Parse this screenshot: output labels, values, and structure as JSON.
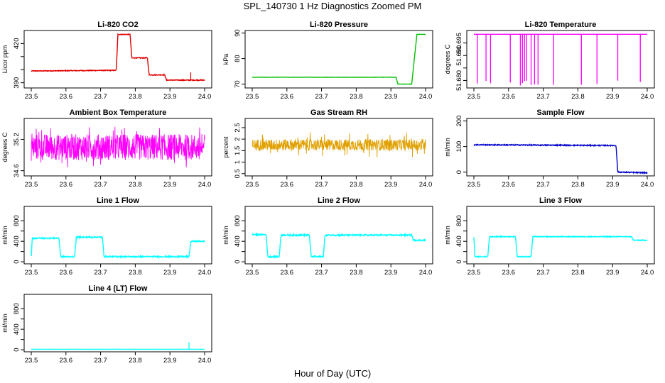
{
  "title": "SPL_140730  1 Hz Diagnostics Zoomed PM",
  "xlabel": "Hour of Day (UTC)",
  "x_ticks": [
    23.5,
    23.6,
    23.7,
    23.8,
    23.9,
    24.0
  ],
  "x_tick_labels": [
    "23.5",
    "23.6",
    "23.7",
    "23.8",
    "23.9",
    "24.0"
  ],
  "chart_data": [
    {
      "type": "line",
      "title": "Li-820 CO2",
      "ylabel": "Licor ppm",
      "color": "#e00000",
      "xlim": [
        23.5,
        24.0
      ],
      "ylim": [
        386,
        430
      ],
      "y_ticks": [
        390,
        400,
        410,
        420
      ],
      "y_tick_labels": [
        "390",
        "",
        "",
        "420"
      ],
      "segments": [
        [
          23.5,
          399
        ],
        [
          23.745,
          399.5
        ],
        [
          23.75,
          427
        ],
        [
          23.785,
          427
        ],
        [
          23.79,
          409
        ],
        [
          23.835,
          409
        ],
        [
          23.84,
          396
        ],
        [
          23.885,
          396
        ],
        [
          23.89,
          392
        ],
        [
          24.0,
          392
        ]
      ],
      "spikes": [
        [
          23.96,
          398
        ]
      ],
      "noise": 0.3
    },
    {
      "type": "line",
      "title": "Li-820 Pressure",
      "ylabel": "kPa",
      "color": "#00c000",
      "xlim": [
        23.5,
        24.0
      ],
      "ylim": [
        68.5,
        91
      ],
      "y_ticks": [
        70,
        80,
        90
      ],
      "y_tick_labels": [
        "70",
        "80",
        "90"
      ],
      "segments": [
        [
          23.5,
          72.7
        ],
        [
          23.915,
          72.7
        ],
        [
          23.92,
          70
        ],
        [
          23.96,
          70
        ],
        [
          23.97,
          83
        ],
        [
          23.975,
          89.5
        ],
        [
          24.0,
          89.5
        ]
      ],
      "noise": 0.05
    },
    {
      "type": "line",
      "title": "Li-820 Temperature",
      "ylabel": "degrees C",
      "color": "#ff00ff",
      "xlim": [
        23.5,
        24.0
      ],
      "ylim": [
        51.677,
        51.7
      ],
      "y_ticks": [
        51.68,
        51.685,
        51.69,
        51.695
      ],
      "y_tick_labels": [
        "51.680",
        "",
        "51.690",
        "51.695"
      ],
      "segments": [
        [
          23.5,
          51.6985
        ],
        [
          24.0,
          51.6985
        ]
      ],
      "dips": [
        23.51,
        23.535,
        23.548,
        23.605,
        23.634,
        23.64,
        23.646,
        23.652,
        23.665,
        23.675,
        23.685,
        23.73,
        23.81,
        23.855,
        23.915,
        23.98
      ],
      "dip_to": 51.678,
      "noise": 0.0
    },
    {
      "type": "noise",
      "title": "Ambient Box Temperature",
      "ylabel": "degrees C",
      "color": "#ff00ff",
      "xlim": [
        23.5,
        24.0
      ],
      "ylim": [
        34.5,
        35.6
      ],
      "y_ticks": [
        34.6,
        35.2
      ],
      "y_tick_labels": [
        "34.6",
        "35.2"
      ],
      "mean": 35.05,
      "band": 0.25,
      "outlier": 0.4
    },
    {
      "type": "noise",
      "title": "Gas Stream RH",
      "ylabel": "percent",
      "color": "#e0a000",
      "xlim": [
        23.5,
        24.0
      ],
      "ylim": [
        0.4,
        2.9
      ],
      "y_ticks": [
        0.5,
        1.0,
        1.5,
        2.0,
        2.5
      ],
      "y_tick_labels": [
        "0.5",
        "1",
        "1.5",
        "2",
        "2.5"
      ],
      "mean": 1.75,
      "band": 0.25,
      "outlier": 0.55
    },
    {
      "type": "line",
      "title": "Sample Flow",
      "ylabel": "ml/min",
      "color": "#0000cc",
      "xlim": [
        23.5,
        24.0
      ],
      "ylim": [
        -15,
        210
      ],
      "y_ticks": [
        0,
        100,
        200
      ],
      "y_tick_labels": [
        "0",
        "100",
        "200"
      ],
      "segments": [
        [
          23.5,
          107
        ],
        [
          23.91,
          104
        ],
        [
          23.915,
          0
        ],
        [
          24.0,
          -3
        ]
      ],
      "noise": 2.0
    },
    {
      "type": "line",
      "title": "Line 1 Flow",
      "ylabel": "ml/min",
      "color": "#00ffff",
      "xlim": [
        23.5,
        24.0
      ],
      "ylim": [
        -40,
        1080
      ],
      "y_ticks": [
        0,
        200,
        400,
        600,
        800
      ],
      "y_tick_labels": [
        "0",
        "",
        "400",
        "",
        "800"
      ],
      "segments": [
        [
          23.5,
          100
        ],
        [
          23.503,
          460
        ],
        [
          23.58,
          460
        ],
        [
          23.585,
          100
        ],
        [
          23.625,
          100
        ],
        [
          23.63,
          480
        ],
        [
          23.705,
          480
        ],
        [
          23.71,
          100
        ],
        [
          23.955,
          100
        ],
        [
          23.96,
          400
        ],
        [
          24.0,
          400
        ]
      ],
      "noise": 12
    },
    {
      "type": "line",
      "title": "Line 2 Flow",
      "ylabel": "ml/min",
      "color": "#00ffff",
      "xlim": [
        23.5,
        24.0
      ],
      "ylim": [
        -40,
        1080
      ],
      "y_ticks": [
        0,
        200,
        400,
        600,
        800
      ],
      "y_tick_labels": [
        "0",
        "",
        "400",
        "",
        "800"
      ],
      "segments": [
        [
          23.5,
          530
        ],
        [
          23.54,
          530
        ],
        [
          23.545,
          100
        ],
        [
          23.578,
          100
        ],
        [
          23.583,
          520
        ],
        [
          23.665,
          520
        ],
        [
          23.67,
          100
        ],
        [
          23.705,
          100
        ],
        [
          23.71,
          520
        ],
        [
          23.96,
          520
        ],
        [
          23.965,
          420
        ],
        [
          24.0,
          420
        ]
      ],
      "noise": 14
    },
    {
      "type": "line",
      "title": "Line 3 Flow",
      "ylabel": "ml/min",
      "color": "#00ffff",
      "xlim": [
        23.5,
        24.0
      ],
      "ylim": [
        -40,
        1080
      ],
      "y_ticks": [
        0,
        200,
        400,
        600,
        800
      ],
      "y_tick_labels": [
        "0",
        "",
        "400",
        "",
        "800"
      ],
      "segments": [
        [
          23.5,
          480
        ],
        [
          23.503,
          100
        ],
        [
          23.54,
          100
        ],
        [
          23.545,
          490
        ],
        [
          23.62,
          490
        ],
        [
          23.625,
          100
        ],
        [
          23.665,
          100
        ],
        [
          23.67,
          490
        ],
        [
          23.955,
          490
        ],
        [
          23.96,
          420
        ],
        [
          24.0,
          420
        ]
      ],
      "noise": 8
    },
    {
      "type": "line",
      "title": "Line 4 (LT) Flow",
      "ylabel": "ml/min",
      "color": "#00ffff",
      "xlim": [
        23.5,
        24.0
      ],
      "ylim": [
        -40,
        1080
      ],
      "y_ticks": [
        0,
        200,
        400,
        600,
        800
      ],
      "y_tick_labels": [
        "0",
        "",
        "400",
        "",
        "800"
      ],
      "segments": [
        [
          23.5,
          10
        ],
        [
          24.0,
          10
        ]
      ],
      "spikes": [
        [
          23.955,
          150
        ]
      ],
      "noise": 1
    }
  ]
}
